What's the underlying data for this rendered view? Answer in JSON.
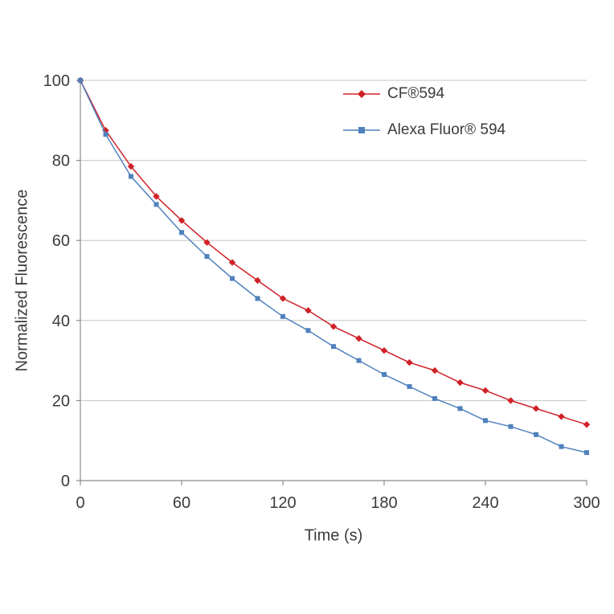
{
  "chart_data": {
    "type": "line",
    "title": "",
    "xlabel": "Time (s)",
    "ylabel": "Normalized Fluorescence",
    "xlim": [
      0,
      300
    ],
    "ylim": [
      0,
      100
    ],
    "xticks": [
      0,
      60,
      120,
      180,
      240,
      300
    ],
    "yticks": [
      0,
      20,
      40,
      60,
      80,
      100
    ],
    "grid": "horizontal",
    "legend_position": "top-right-inside",
    "x": [
      0,
      15,
      30,
      45,
      60,
      75,
      90,
      105,
      120,
      135,
      150,
      165,
      180,
      195,
      210,
      225,
      240,
      255,
      270,
      285,
      300
    ],
    "series": [
      {
        "name": "CF®594",
        "color": "#d02028",
        "marker": "diamond",
        "values": [
          100,
          87.5,
          78.5,
          71,
          65,
          59.5,
          54.5,
          50,
          45.5,
          42.5,
          38.5,
          35.5,
          32.5,
          29.5,
          27.5,
          24.5,
          22.5,
          20,
          18,
          16,
          14
        ]
      },
      {
        "name": "Alexa Fluor® 594",
        "color": "#4f81bd",
        "marker": "square",
        "values": [
          100,
          86.5,
          76,
          69,
          62,
          56,
          50.5,
          45.5,
          41,
          37.5,
          33.5,
          30,
          26.5,
          23.5,
          20.5,
          18,
          15,
          13.5,
          11.5,
          8.5,
          7
        ]
      }
    ],
    "colors": {
      "grid": "#c6c6c6",
      "axis": "#8c8c8c",
      "text": "#3b3b3b",
      "background": "#ffffff"
    }
  }
}
